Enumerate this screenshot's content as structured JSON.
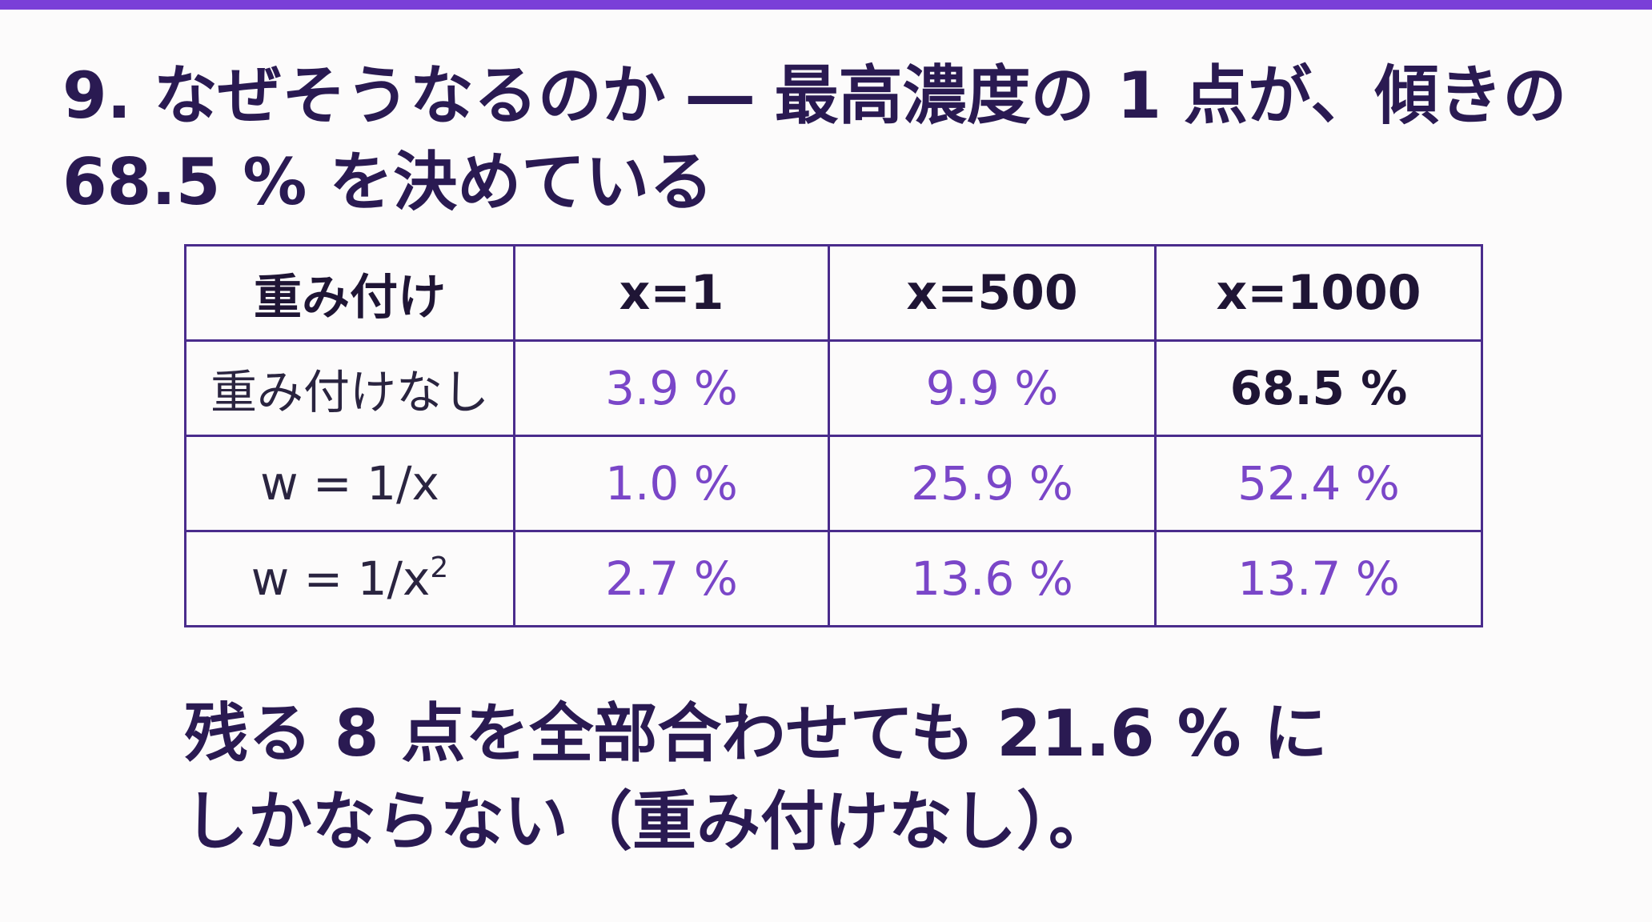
{
  "slide": {
    "title_line1": "9. なぜそうなるのか ― 最高濃度の 1 点が、傾きの",
    "title_line2": "68.5 % を決めている"
  },
  "table": {
    "headers": [
      "重み付け",
      "x=1",
      "x=500",
      "x=1000"
    ],
    "rows": [
      {
        "label": "重み付けなし",
        "values": [
          "3.9 %",
          "9.9 %",
          "68.5 %"
        ]
      },
      {
        "label": "w = 1/x",
        "values": [
          "1.0 %",
          "25.9 %",
          "52.4 %"
        ]
      },
      {
        "label_base": "w = 1/x",
        "label_sup": "2",
        "values": [
          "2.7 %",
          "13.6 %",
          "13.7 %"
        ]
      }
    ]
  },
  "conclusion": {
    "line1": "残る 8 点を全部合わせても 21.6 % に",
    "line2": "しかならない（重み付けなし）。"
  },
  "colors": {
    "accent_bar": "#7a3fd8",
    "title_text": "#2a1a52",
    "table_border": "#4a2c8c",
    "value_text": "#7a46c8",
    "highlight_value": "#1f1535",
    "background": "#fcfbfb"
  }
}
